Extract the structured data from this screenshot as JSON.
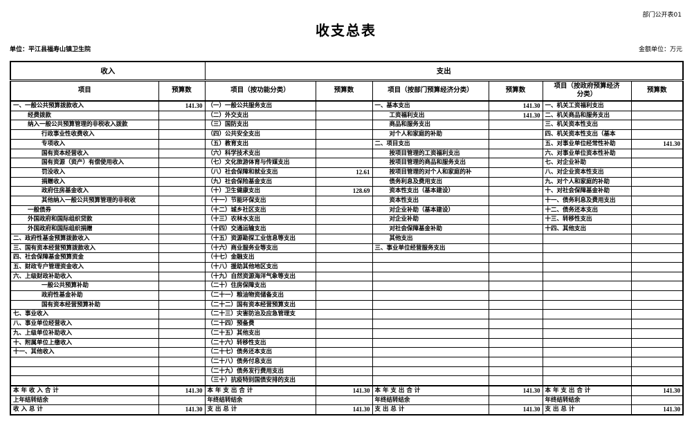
{
  "header": {
    "sheet_label": "部门公开表01",
    "title": "收支总表",
    "unit": "单位：平江县福寿山镇卫生院",
    "amount_unit": "金额单位：万元"
  },
  "colors": {
    "text": "#000000",
    "border": "#000000",
    "background": "#ffffff"
  },
  "table": {
    "group_income": "收入",
    "group_expense": "支出",
    "col_headers": [
      "项目",
      "预算数",
      "项目（按功能分类）",
      "预算数",
      "项目（按部门预算经济分类）",
      "预算数",
      "项目（按政府预算经济\n分类）",
      "预算数"
    ],
    "rows": [
      {
        "income": {
          "item": "一、一般公共预算拨款收入",
          "indent": 0,
          "value": "141.30"
        },
        "func": {
          "item": "（一）一般公共服务支出",
          "value": ""
        },
        "dept": {
          "item": "一、基本支出",
          "indent": 0,
          "value": "141.30"
        },
        "gov": {
          "item": "一、机关工资福利支出",
          "value": ""
        }
      },
      {
        "income": {
          "item": "经费拨款",
          "indent": 1,
          "value": ""
        },
        "func": {
          "item": "（二）外交支出",
          "value": ""
        },
        "dept": {
          "item": "工资福利支出",
          "indent": 1,
          "value": "141.30"
        },
        "gov": {
          "item": "二、机关商品和服务支出",
          "value": ""
        }
      },
      {
        "income": {
          "item": "纳入一般公共预算管理的非税收入拨款",
          "indent": 1,
          "value": ""
        },
        "func": {
          "item": "（三）国防支出",
          "value": ""
        },
        "dept": {
          "item": "商品和服务支出",
          "indent": 1,
          "value": ""
        },
        "gov": {
          "item": "三、机关资本性支出",
          "value": ""
        }
      },
      {
        "income": {
          "item": "行政事业性收费收入",
          "indent": 2,
          "value": ""
        },
        "func": {
          "item": "（四）公共安全支出",
          "value": ""
        },
        "dept": {
          "item": "对个人和家庭的补助",
          "indent": 1,
          "value": ""
        },
        "gov": {
          "item": "四、机关资本性支出（基本",
          "value": ""
        }
      },
      {
        "income": {
          "item": "专项收入",
          "indent": 2,
          "value": ""
        },
        "func": {
          "item": "（五）教育支出",
          "value": ""
        },
        "dept": {
          "item": "二、项目支出",
          "indent": 0,
          "value": ""
        },
        "gov": {
          "item": "五、对事业单位经常性补助",
          "value": "141.30"
        }
      },
      {
        "income": {
          "item": "国有资本经营收入",
          "indent": 2,
          "value": ""
        },
        "func": {
          "item": "（六）科学技术支出",
          "value": ""
        },
        "dept": {
          "item": "按项目管理的工资福利支出",
          "indent": 1,
          "value": ""
        },
        "gov": {
          "item": "六、对事业单位资本性补助",
          "value": ""
        }
      },
      {
        "income": {
          "item": "国有资源（资产）有偿使用收入",
          "indent": 2,
          "value": ""
        },
        "func": {
          "item": "（七）文化旅游体育与传媒支出",
          "value": ""
        },
        "dept": {
          "item": "按项目管理的商品和服务支出",
          "indent": 1,
          "value": ""
        },
        "gov": {
          "item": "七、对企业补助",
          "value": ""
        }
      },
      {
        "income": {
          "item": "罚没收入",
          "indent": 2,
          "value": ""
        },
        "func": {
          "item": "（八）社会保障和就业支出",
          "value": "12.61"
        },
        "dept": {
          "item": "按项目管理的对个人和家庭的补",
          "indent": 1,
          "value": ""
        },
        "gov": {
          "item": "八、对企业资本性支出",
          "value": ""
        }
      },
      {
        "income": {
          "item": "捐赠收入",
          "indent": 2,
          "value": ""
        },
        "func": {
          "item": "（九）社会保险基金支出",
          "value": ""
        },
        "dept": {
          "item": "债务利息及费用支出",
          "indent": 1,
          "value": ""
        },
        "gov": {
          "item": "九、对个人和家庭的补助",
          "value": ""
        }
      },
      {
        "income": {
          "item": "政府住房基金收入",
          "indent": 2,
          "value": ""
        },
        "func": {
          "item": "（十）卫生健康支出",
          "value": "128.69"
        },
        "dept": {
          "item": "资本性支出（基本建设）",
          "indent": 1,
          "value": ""
        },
        "gov": {
          "item": "十、对社会保障基金补助",
          "value": ""
        }
      },
      {
        "income": {
          "item": "其他纳入一般公共预算管理的非税收",
          "indent": 2,
          "value": ""
        },
        "func": {
          "item": "（十一）节能环保支出",
          "value": ""
        },
        "dept": {
          "item": "资本性支出",
          "indent": 1,
          "value": ""
        },
        "gov": {
          "item": "十一、债务利息及费用支出",
          "value": ""
        }
      },
      {
        "income": {
          "item": "一般债券",
          "indent": 1,
          "value": ""
        },
        "func": {
          "item": "（十二）城乡社区支出",
          "value": ""
        },
        "dept": {
          "item": "对企业补助（基本建设）",
          "indent": 1,
          "value": ""
        },
        "gov": {
          "item": "十二、债务还本支出",
          "value": ""
        }
      },
      {
        "income": {
          "item": "外国政府和国际组织贷款",
          "indent": 1,
          "value": ""
        },
        "func": {
          "item": "（十三）农林水支出",
          "value": ""
        },
        "dept": {
          "item": "对企业补助",
          "indent": 1,
          "value": ""
        },
        "gov": {
          "item": "十三、转移性支出",
          "value": ""
        }
      },
      {
        "income": {
          "item": "外国政府和国际组织捐赠",
          "indent": 1,
          "value": ""
        },
        "func": {
          "item": "（十四）交通运输支出",
          "value": ""
        },
        "dept": {
          "item": "对社会保障基金补助",
          "indent": 1,
          "value": ""
        },
        "gov": {
          "item": "十四、其他支出",
          "value": ""
        }
      },
      {
        "income": {
          "item": "二、政府性基金预算拨款收入",
          "indent": 0,
          "value": ""
        },
        "func": {
          "item": "（十五）资源勘探工业信息等支出",
          "value": ""
        },
        "dept": {
          "item": "其他支出",
          "indent": 1,
          "value": ""
        },
        "gov": {
          "item": "",
          "value": ""
        }
      },
      {
        "income": {
          "item": "三、国有资本经营预算拨款收入",
          "indent": 0,
          "value": ""
        },
        "func": {
          "item": "（十六）商业服务业等支出",
          "value": ""
        },
        "dept": {
          "item": "三、事业单位经营服务支出",
          "indent": 0,
          "value": ""
        },
        "gov": {
          "item": "",
          "value": ""
        }
      },
      {
        "income": {
          "item": "四、社会保障基金预算资金",
          "indent": 0,
          "value": ""
        },
        "func": {
          "item": "（十七）金融支出",
          "value": ""
        },
        "dept": {
          "item": "",
          "indent": 0,
          "value": ""
        },
        "gov": {
          "item": "",
          "value": ""
        }
      },
      {
        "income": {
          "item": "五、财政专户管理资金收入",
          "indent": 0,
          "value": ""
        },
        "func": {
          "item": "（十八）援助其他地区支出",
          "value": ""
        },
        "dept": {
          "item": "",
          "indent": 0,
          "value": ""
        },
        "gov": {
          "item": "",
          "value": ""
        }
      },
      {
        "income": {
          "item": "六、上级财政补助收入",
          "indent": 0,
          "value": ""
        },
        "func": {
          "item": "（十九）自然资源海洋气象等支出",
          "value": ""
        },
        "dept": {
          "item": "",
          "indent": 0,
          "value": ""
        },
        "gov": {
          "item": "",
          "value": ""
        }
      },
      {
        "income": {
          "item": "一般公共预算补助",
          "indent": 2,
          "value": ""
        },
        "func": {
          "item": "（二十）住房保障支出",
          "value": ""
        },
        "dept": {
          "item": "",
          "indent": 0,
          "value": ""
        },
        "gov": {
          "item": "",
          "value": ""
        }
      },
      {
        "income": {
          "item": "政府性基金补助",
          "indent": 2,
          "value": ""
        },
        "func": {
          "item": "（二十一）粮油物资储备支出",
          "value": ""
        },
        "dept": {
          "item": "",
          "indent": 0,
          "value": ""
        },
        "gov": {
          "item": "",
          "value": ""
        }
      },
      {
        "income": {
          "item": "国有资本经营预算补助",
          "indent": 2,
          "value": ""
        },
        "func": {
          "item": "（二十二）国有资本经营预算支出",
          "value": ""
        },
        "dept": {
          "item": "",
          "indent": 0,
          "value": ""
        },
        "gov": {
          "item": "",
          "value": ""
        }
      },
      {
        "income": {
          "item": "七、事业收入",
          "indent": 0,
          "value": ""
        },
        "func": {
          "item": "（二十三）灾害防治及应急管理支",
          "value": ""
        },
        "dept": {
          "item": "",
          "indent": 0,
          "value": ""
        },
        "gov": {
          "item": "",
          "value": ""
        }
      },
      {
        "income": {
          "item": "八、事业单位经营收入",
          "indent": 0,
          "value": ""
        },
        "func": {
          "item": "（二十四）预备费",
          "value": ""
        },
        "dept": {
          "item": "",
          "indent": 0,
          "value": ""
        },
        "gov": {
          "item": "",
          "value": ""
        }
      },
      {
        "income": {
          "item": "九、上级单位补助收入",
          "indent": 0,
          "value": ""
        },
        "func": {
          "item": "（二十五）其他支出",
          "value": ""
        },
        "dept": {
          "item": "",
          "indent": 0,
          "value": ""
        },
        "gov": {
          "item": "",
          "value": ""
        }
      },
      {
        "income": {
          "item": "十、附属单位上缴收入",
          "indent": 0,
          "value": ""
        },
        "func": {
          "item": "（二十六）转移性支出",
          "value": ""
        },
        "dept": {
          "item": "",
          "indent": 0,
          "value": ""
        },
        "gov": {
          "item": "",
          "value": ""
        }
      },
      {
        "income": {
          "item": "十一、其他收入",
          "indent": 0,
          "value": ""
        },
        "func": {
          "item": "（二十七）债务还本支出",
          "value": ""
        },
        "dept": {
          "item": "",
          "indent": 0,
          "value": ""
        },
        "gov": {
          "item": "",
          "value": ""
        }
      },
      {
        "income": {
          "item": "",
          "indent": 0,
          "value": ""
        },
        "func": {
          "item": "（二十八）债务付息支出",
          "value": ""
        },
        "dept": {
          "item": "",
          "indent": 0,
          "value": ""
        },
        "gov": {
          "item": "",
          "value": ""
        }
      },
      {
        "income": {
          "item": "",
          "indent": 0,
          "value": ""
        },
        "func": {
          "item": "（二十九）债务发行费用支出",
          "value": ""
        },
        "dept": {
          "item": "",
          "indent": 0,
          "value": ""
        },
        "gov": {
          "item": "",
          "value": ""
        }
      },
      {
        "income": {
          "item": "",
          "indent": 0,
          "value": ""
        },
        "func": {
          "item": "（三十）抗疫特别国债安排的支出",
          "value": ""
        },
        "dept": {
          "item": "",
          "indent": 0,
          "value": ""
        },
        "gov": {
          "item": "",
          "value": ""
        }
      }
    ],
    "totals": [
      {
        "income_label": "本 年 收 入 合 计",
        "income_value": "141.30",
        "func_label": "本 年 支 出 合 计",
        "func_value": "141.30",
        "dept_label": "本 年 支 出 合 计",
        "dept_value": "141.30",
        "gov_label": "本 年 支 出 合 计",
        "gov_value": "141.30"
      },
      {
        "income_label": "上年结转结余",
        "income_value": "",
        "func_label": "年终结转结余",
        "func_value": "",
        "dept_label": "年终结转结余",
        "dept_value": "",
        "gov_label": "年终结转结余",
        "gov_value": ""
      },
      {
        "income_label": "收 入 总 计",
        "income_value": "141.30",
        "func_label": "支 出 总 计",
        "func_value": "141.30",
        "dept_label": "支 出 总 计",
        "dept_value": "141.30",
        "gov_label": "支 出 总 计",
        "gov_value": "141.30"
      }
    ]
  }
}
